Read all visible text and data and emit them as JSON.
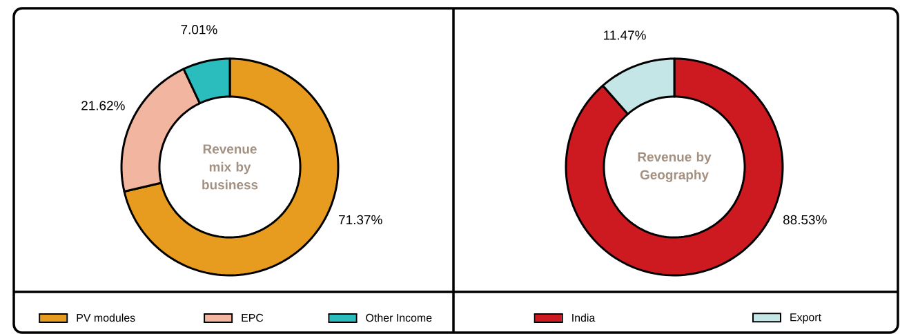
{
  "chart_data": [
    {
      "type": "donut",
      "title": "Revenue mix by business",
      "categories": [
        "PV modules",
        "EPC",
        "Other Income"
      ],
      "values": [
        71.37,
        21.62,
        7.01
      ],
      "value_labels": [
        "71.37%",
        "21.62%",
        "7.01%"
      ],
      "colors": [
        "#e89c1f",
        "#f2b5a0",
        "#2bbcbd"
      ],
      "legend": "bottom"
    },
    {
      "type": "donut",
      "title": "Revenue by Geography",
      "categories": [
        "India",
        "Export"
      ],
      "values": [
        88.53,
        11.47
      ],
      "value_labels": [
        "88.53%",
        "11.47%"
      ],
      "colors": [
        "#cc1a20",
        "#c4e6e6"
      ],
      "legend": "bottom"
    }
  ]
}
